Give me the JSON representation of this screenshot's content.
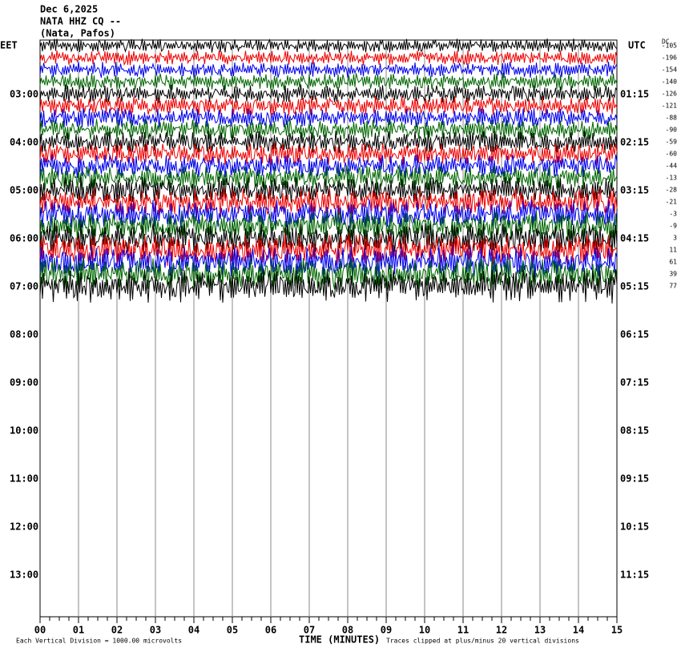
{
  "header": {
    "date": "Dec 6,2025",
    "station": "NATA HHZ CQ --",
    "location": "(Nata, Pafos)"
  },
  "left_axis": {
    "title": "EET",
    "labels": [
      "03:00",
      "04:00",
      "05:00",
      "06:00",
      "07:00",
      "08:00",
      "09:00",
      "10:00",
      "11:00",
      "12:00",
      "13:00"
    ]
  },
  "right_axis": {
    "title": "UTC",
    "labels": [
      "01:15",
      "02:15",
      "03:15",
      "04:15",
      "05:15",
      "06:15",
      "07:15",
      "08:15",
      "09:15",
      "10:15",
      "11:15"
    ]
  },
  "dc": {
    "title": "DC",
    "values": [
      -105,
      -196,
      -154,
      -140,
      -126,
      -121,
      -88,
      -90,
      -59,
      -60,
      -44,
      -13,
      -28,
      -21,
      -3,
      -9,
      3,
      11,
      61,
      39,
      77
    ]
  },
  "x_axis": {
    "labels": [
      "00",
      "01",
      "02",
      "03",
      "04",
      "05",
      "06",
      "07",
      "08",
      "09",
      "10",
      "11",
      "12",
      "13",
      "14",
      "15"
    ],
    "title": "TIME (MINUTES)"
  },
  "footer": {
    "scale": "Each Vertical Division = 1000.00 microvolts",
    "clip": "Traces clipped at plus/minus 20 vertical divisions"
  }
}
